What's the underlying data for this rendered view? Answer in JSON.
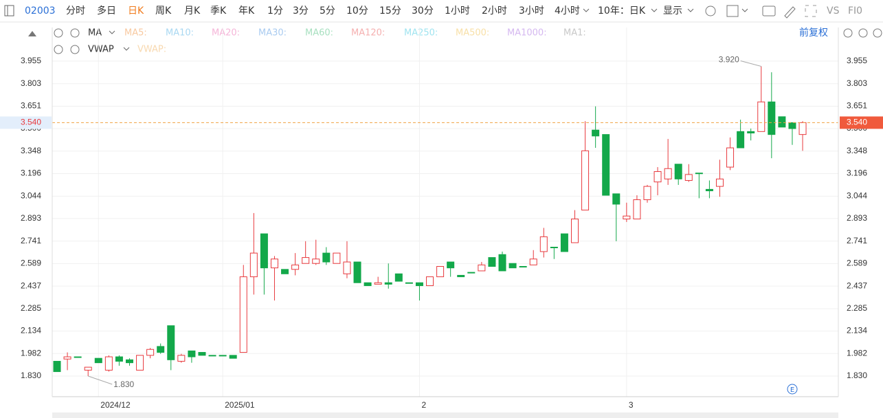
{
  "toolbar": {
    "ticker": "02003",
    "periods": [
      "分时",
      "多日",
      "日K",
      "周K",
      "月K",
      "季K",
      "年K",
      "1分",
      "3分",
      "5分",
      "10分",
      "15分",
      "30分",
      "1小时",
      "2小时",
      "3小时",
      "4小时"
    ],
    "range": "10年：日K",
    "display": "显示",
    "vs": "VS",
    "f10": "FI0"
  },
  "indicators": {
    "ma": {
      "name": "MA",
      "lines": [
        "MA5:",
        "MA10:",
        "MA20:",
        "MA30:",
        "MA60:",
        "MA120:",
        "MA250:",
        "MA500:",
        "MA1000:",
        "MA1:"
      ]
    },
    "vwap": {
      "name": "VWAP",
      "label": "VWAP:"
    },
    "adjust": "前复权"
  },
  "chart_data": {
    "type": "candlestick",
    "categories": [
      null,
      null,
      null,
      null,
      "2024/12",
      null,
      null,
      null,
      null,
      null,
      null,
      null,
      null,
      null,
      null,
      null,
      "2025/01",
      null,
      null,
      null,
      null,
      null,
      null,
      null,
      null,
      null,
      null,
      null,
      null,
      null,
      null,
      null,
      null,
      null,
      null,
      "2",
      null,
      null,
      null,
      null,
      null,
      null,
      null,
      null,
      null,
      null,
      null,
      null,
      null,
      null,
      null,
      null,
      null,
      null,
      null,
      "3",
      null,
      null,
      null,
      null,
      null,
      null,
      null,
      null,
      null,
      null,
      null,
      null,
      null,
      null,
      null,
      null,
      null
    ],
    "open": [
      1.93,
      1.945,
      1.96,
      1.87,
      1.95,
      1.87,
      1.96,
      1.94,
      1.87,
      1.97,
      2.03,
      2.17,
      1.93,
      2.0,
      1.99,
      1.97,
      1.97,
      1.97,
      1.99,
      2.5,
      2.79,
      2.56,
      2.55,
      2.55,
      2.59,
      2.59,
      2.66,
      2.59,
      2.52,
      2.6,
      2.46,
      2.45,
      2.46,
      2.52,
      2.46,
      2.46,
      2.44,
      2.5,
      2.6,
      2.51,
      2.53,
      2.54,
      2.63,
      2.65,
      2.59,
      2.57,
      2.58,
      2.67,
      2.7,
      2.79,
      2.73,
      2.95,
      3.49,
      3.46,
      3.06,
      2.89,
      2.89,
      3.02,
      3.14,
      3.16,
      3.26,
      3.15,
      3.2,
      3.09,
      3.11,
      3.24,
      3.48,
      3.48,
      3.48,
      3.68,
      3.58,
      3.54,
      3.46
    ],
    "high": [
      1.93,
      1.99,
      1.96,
      1.89,
      1.95,
      1.97,
      1.97,
      1.95,
      1.97,
      2.02,
      2.05,
      2.17,
      1.98,
      2.0,
      1.99,
      1.97,
      1.97,
      1.97,
      2.58,
      2.93,
      2.79,
      2.64,
      2.55,
      2.66,
      2.74,
      2.75,
      2.7,
      2.66,
      2.74,
      2.6,
      2.46,
      2.5,
      2.59,
      2.52,
      2.46,
      2.46,
      2.5,
      2.57,
      2.6,
      2.51,
      2.53,
      2.6,
      2.63,
      2.67,
      2.59,
      2.57,
      2.68,
      2.83,
      2.7,
      2.79,
      2.95,
      3.55,
      3.65,
      3.46,
      3.06,
      3.0,
      3.05,
      3.12,
      3.24,
      3.43,
      3.26,
      3.26,
      3.2,
      3.15,
      3.29,
      3.44,
      3.56,
      3.5,
      3.92,
      3.88,
      3.58,
      3.54,
      3.55
    ],
    "low": [
      1.86,
      1.87,
      1.96,
      1.83,
      1.92,
      1.86,
      1.9,
      1.9,
      1.87,
      1.95,
      1.98,
      1.87,
      1.92,
      1.92,
      1.97,
      1.97,
      1.97,
      1.95,
      1.99,
      2.38,
      2.38,
      2.34,
      2.52,
      2.51,
      2.59,
      2.58,
      2.58,
      2.59,
      2.49,
      2.46,
      2.44,
      2.45,
      2.42,
      2.47,
      2.46,
      2.34,
      2.44,
      2.5,
      2.5,
      2.5,
      2.53,
      2.54,
      2.57,
      2.54,
      2.56,
      2.57,
      2.58,
      2.63,
      2.62,
      2.67,
      2.73,
      2.95,
      3.37,
      3.05,
      2.74,
      2.87,
      2.89,
      3.0,
      3.05,
      3.12,
      3.12,
      3.14,
      3.03,
      3.03,
      3.04,
      3.22,
      3.37,
      3.42,
      3.48,
      3.3,
      3.51,
      3.39,
      3.35
    ],
    "close": [
      1.86,
      1.96,
      1.96,
      1.89,
      1.92,
      1.96,
      1.93,
      1.92,
      1.97,
      2.01,
      1.99,
      1.94,
      1.97,
      1.96,
      1.97,
      1.97,
      1.97,
      1.95,
      2.5,
      2.66,
      2.56,
      2.62,
      2.52,
      2.58,
      2.63,
      2.62,
      2.6,
      2.66,
      2.6,
      2.46,
      2.44,
      2.46,
      2.45,
      2.47,
      2.46,
      2.44,
      2.5,
      2.57,
      2.56,
      2.5,
      2.53,
      2.58,
      2.57,
      2.54,
      2.56,
      2.57,
      2.62,
      2.77,
      2.7,
      2.67,
      2.89,
      3.35,
      3.45,
      3.05,
      2.99,
      2.91,
      3.02,
      3.11,
      3.21,
      3.23,
      3.16,
      3.19,
      3.2,
      3.08,
      3.16,
      3.37,
      3.37,
      3.47,
      3.68,
      3.46,
      3.51,
      3.5,
      3.54
    ],
    "up_color": "#e8393d",
    "down_color": "#13a84a",
    "ylim": [
      1.691,
      4.182
    ],
    "yticks": [
      {
        "value": 3.955,
        "label": "3.955"
      },
      {
        "value": 3.803,
        "label": "3.803"
      },
      {
        "value": 3.651,
        "label": "3.651"
      },
      {
        "value": 3.5,
        "label": "3.500"
      },
      {
        "value": 3.348,
        "label": "3.348"
      },
      {
        "value": 3.196,
        "label": "3.196"
      },
      {
        "value": 3.044,
        "label": "3.044"
      },
      {
        "value": 2.893,
        "label": "2.893"
      },
      {
        "value": 2.741,
        "label": "2.741"
      },
      {
        "value": 2.589,
        "label": "2.589"
      },
      {
        "value": 2.437,
        "label": "2.437"
      },
      {
        "value": 2.285,
        "label": "2.285"
      },
      {
        "value": 2.134,
        "label": "2.134"
      },
      {
        "value": 1.982,
        "label": "1.982"
      },
      {
        "value": 1.83,
        "label": "1.830"
      }
    ],
    "grid": true,
    "max_label": {
      "value": 3.92,
      "label": "3.920"
    },
    "min_label": {
      "value": 1.83,
      "label": "1.830"
    },
    "last_price": {
      "value": 3.54,
      "label": "3.540"
    }
  }
}
